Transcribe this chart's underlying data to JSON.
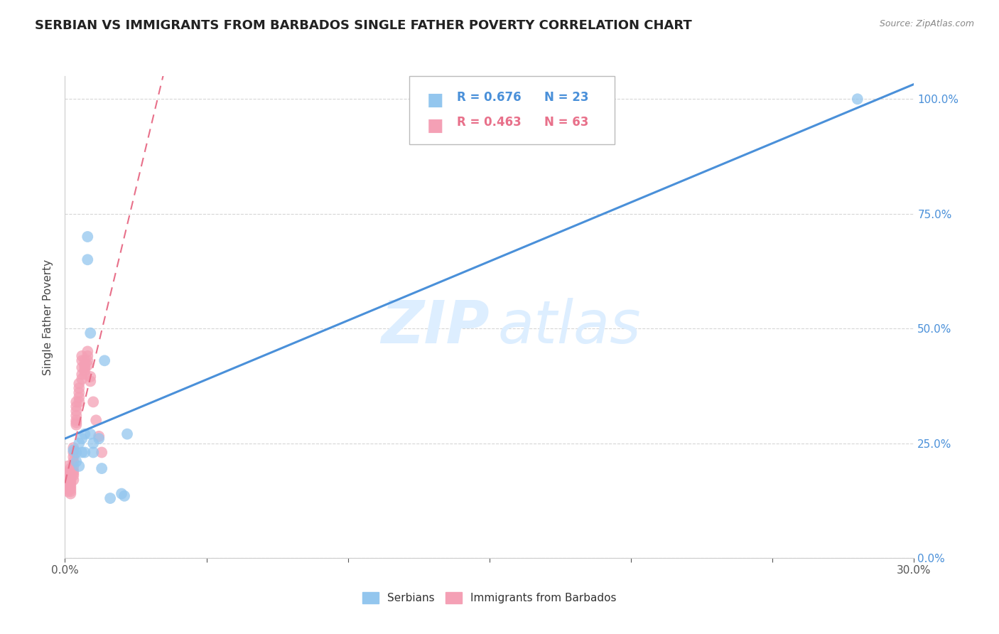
{
  "title": "SERBIAN VS IMMIGRANTS FROM BARBADOS SINGLE FATHER POVERTY CORRELATION CHART",
  "source": "Source: ZipAtlas.com",
  "ylabel": "Single Father Poverty",
  "xlim": [
    0.0,
    0.3
  ],
  "ylim": [
    0.0,
    1.05
  ],
  "legend_r_blue": "R = 0.676",
  "legend_n_blue": "N = 23",
  "legend_r_pink": "R = 0.463",
  "legend_n_pink": "N = 63",
  "legend_label_blue": "Serbians",
  "legend_label_pink": "Immigrants from Barbados",
  "blue_color": "#93C6EE",
  "pink_color": "#F4A0B5",
  "blue_line_color": "#4A90D9",
  "pink_line_color": "#E8708A",
  "serbians_x": [
    0.003,
    0.004,
    0.004,
    0.005,
    0.005,
    0.006,
    0.006,
    0.007,
    0.007,
    0.008,
    0.008,
    0.009,
    0.009,
    0.01,
    0.01,
    0.012,
    0.013,
    0.014,
    0.016,
    0.02,
    0.021,
    0.022,
    0.28
  ],
  "serbians_y": [
    0.235,
    0.23,
    0.21,
    0.25,
    0.2,
    0.23,
    0.26,
    0.27,
    0.23,
    0.7,
    0.65,
    0.49,
    0.27,
    0.25,
    0.23,
    0.26,
    0.195,
    0.43,
    0.13,
    0.14,
    0.135,
    0.27,
    1.0
  ],
  "barbados_x": [
    0.001,
    0.001,
    0.001,
    0.001,
    0.001,
    0.001,
    0.001,
    0.001,
    0.001,
    0.001,
    0.002,
    0.002,
    0.002,
    0.002,
    0.002,
    0.002,
    0.002,
    0.002,
    0.002,
    0.002,
    0.002,
    0.002,
    0.003,
    0.003,
    0.003,
    0.003,
    0.003,
    0.003,
    0.003,
    0.003,
    0.003,
    0.004,
    0.004,
    0.004,
    0.004,
    0.004,
    0.004,
    0.004,
    0.005,
    0.005,
    0.005,
    0.005,
    0.005,
    0.006,
    0.006,
    0.006,
    0.006,
    0.006,
    0.007,
    0.007,
    0.007,
    0.007,
    0.007,
    0.008,
    0.008,
    0.008,
    0.008,
    0.009,
    0.009,
    0.01,
    0.011,
    0.012,
    0.013
  ],
  "barbados_y": [
    0.2,
    0.185,
    0.18,
    0.175,
    0.17,
    0.165,
    0.16,
    0.155,
    0.15,
    0.145,
    0.195,
    0.19,
    0.185,
    0.18,
    0.175,
    0.17,
    0.165,
    0.16,
    0.155,
    0.15,
    0.145,
    0.14,
    0.24,
    0.23,
    0.22,
    0.21,
    0.2,
    0.19,
    0.185,
    0.18,
    0.17,
    0.34,
    0.33,
    0.32,
    0.31,
    0.3,
    0.295,
    0.29,
    0.38,
    0.37,
    0.36,
    0.35,
    0.34,
    0.44,
    0.43,
    0.415,
    0.4,
    0.39,
    0.43,
    0.42,
    0.415,
    0.408,
    0.4,
    0.45,
    0.44,
    0.43,
    0.42,
    0.395,
    0.385,
    0.34,
    0.3,
    0.265,
    0.23
  ],
  "x_tick_vals": [
    0.0,
    0.05,
    0.1,
    0.15,
    0.2,
    0.25,
    0.3
  ],
  "x_tick_labels": [
    "0.0%",
    "",
    "",
    "",
    "",
    "",
    "30.0%"
  ],
  "y_tick_vals": [
    0.0,
    0.25,
    0.5,
    0.75,
    1.0
  ],
  "y_tick_labels": [
    "0.0%",
    "25.0%",
    "50.0%",
    "75.0%",
    "100.0%"
  ]
}
